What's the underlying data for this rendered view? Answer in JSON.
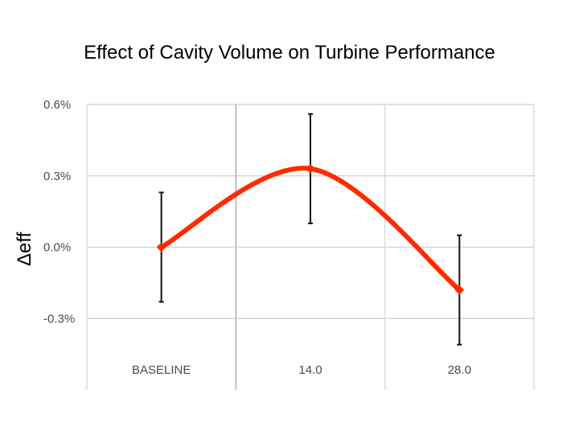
{
  "chart_data": {
    "type": "line",
    "title": "Effect of Cavity Volume on Turbine Performance",
    "ylabel": "Δeff",
    "xlabel": "",
    "categories": [
      "BASELINE",
      "14.0",
      "28.0"
    ],
    "series": [
      {
        "values": [
          0.0,
          0.33,
          -0.18
        ],
        "error_low": [
          -0.23,
          0.1,
          -0.41
        ],
        "error_high": [
          0.23,
          0.56,
          0.05
        ],
        "color": "#ff2a00"
      }
    ],
    "ylim": [
      -0.6,
      0.6
    ],
    "yticks": [
      0.6,
      0.3,
      0.0,
      -0.3
    ],
    "ytick_labels": [
      "0.6%",
      "0.3%",
      "0.0%",
      "-0.3%"
    ],
    "grid": true,
    "smooth": true,
    "legend": "none"
  }
}
